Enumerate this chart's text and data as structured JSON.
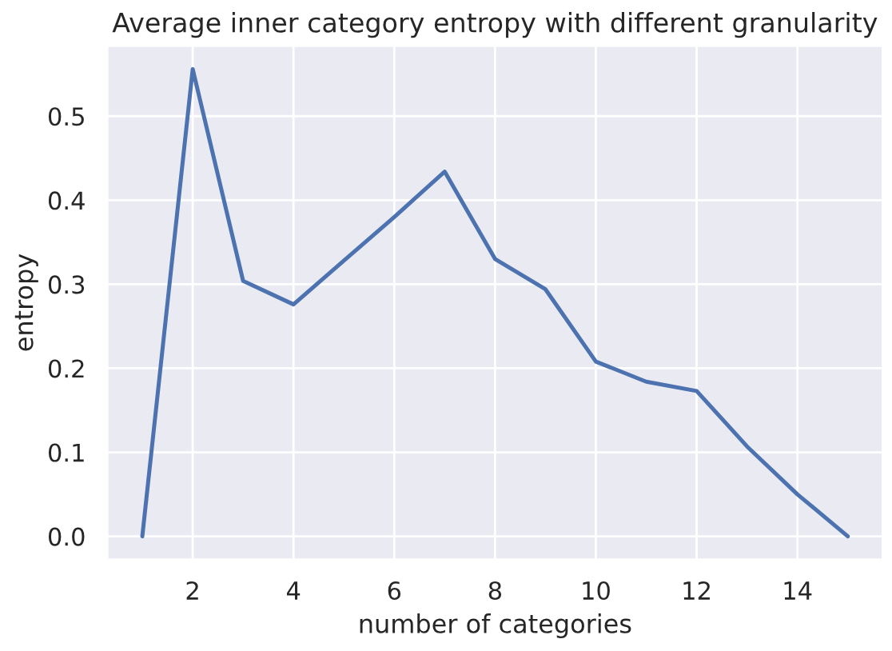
{
  "chart_data": {
    "type": "line",
    "title": "Average inner category entropy with different granularity",
    "xlabel": "number of categories",
    "ylabel": "entropy",
    "x": [
      1,
      2,
      3,
      4,
      5,
      6,
      7,
      8,
      9,
      10,
      11,
      12,
      13,
      14,
      15
    ],
    "series": [
      {
        "color": "#4c72b0",
        "values": [
          0.0,
          0.556,
          0.304,
          0.276,
          0.328,
          0.38,
          0.434,
          0.33,
          0.294,
          0.208,
          0.184,
          0.173,
          0.107,
          0.05,
          0.0
        ]
      }
    ],
    "xlim": [
      0.3,
      15.7
    ],
    "xticks": [
      2,
      4,
      6,
      8,
      10,
      12,
      14
    ],
    "ylim": [
      -0.028,
      0.584
    ],
    "yticks": [
      {
        "value": 0.0,
        "label": "0.0"
      },
      0.1,
      0.2,
      0.3,
      0.4,
      0.5
    ],
    "grid": true,
    "legend": false
  }
}
